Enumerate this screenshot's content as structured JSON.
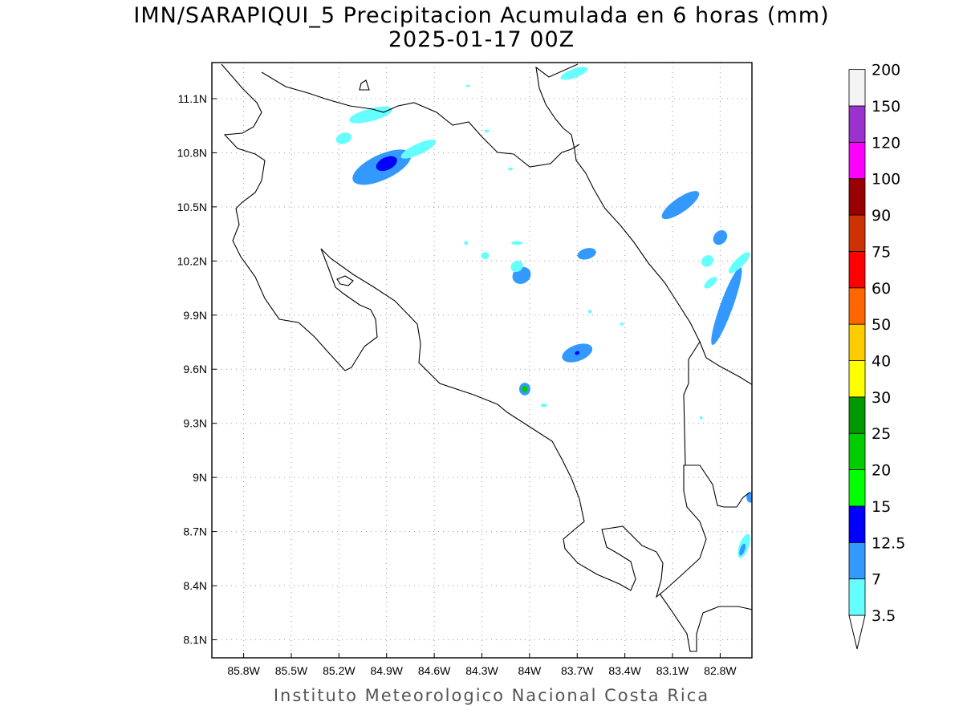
{
  "title_line1": "IMN/SARAPIQUI_5 Precipitacion Acumulada en 6 horas (mm)",
  "title_line2": "2025-01-17 00Z",
  "credit": "Instituto Meteorologico Nacional Costa Rica",
  "map": {
    "lon_min": -86.0,
    "lon_max": -82.6,
    "lat_min": 8.0,
    "lat_max": 11.3,
    "x_ticks": [
      {
        "value": -85.8,
        "label": "85.8W"
      },
      {
        "value": -85.5,
        "label": "85.5W"
      },
      {
        "value": -85.2,
        "label": "85.2W"
      },
      {
        "value": -84.9,
        "label": "84.9W"
      },
      {
        "value": -84.6,
        "label": "84.6W"
      },
      {
        "value": -84.3,
        "label": "84.3W"
      },
      {
        "value": -84.0,
        "label": "84W"
      },
      {
        "value": -83.7,
        "label": "83.7W"
      },
      {
        "value": -83.4,
        "label": "83.4W"
      },
      {
        "value": -83.1,
        "label": "83.1W"
      },
      {
        "value": -82.8,
        "label": "82.8W"
      }
    ],
    "y_ticks": [
      {
        "value": 11.1,
        "label": "11.1N"
      },
      {
        "value": 10.8,
        "label": "10.8N"
      },
      {
        "value": 10.5,
        "label": "10.5N"
      },
      {
        "value": 10.2,
        "label": "10.2N"
      },
      {
        "value": 9.9,
        "label": "9.9N"
      },
      {
        "value": 9.6,
        "label": "9.6N"
      },
      {
        "value": 9.3,
        "label": "9.3N"
      },
      {
        "value": 9.0,
        "label": "9N"
      },
      {
        "value": 8.7,
        "label": "8.7N"
      },
      {
        "value": 8.4,
        "label": "8.4N"
      },
      {
        "value": 8.1,
        "label": "8.1N"
      }
    ]
  },
  "colorbar": [
    {
      "label": "3.5",
      "color": "#66ffff"
    },
    {
      "label": "7",
      "color": "#3399ff"
    },
    {
      "label": "12.5",
      "color": "#0000ff"
    },
    {
      "label": "15",
      "color": "#00ff00"
    },
    {
      "label": "20",
      "color": "#00cc00"
    },
    {
      "label": "25",
      "color": "#009900"
    },
    {
      "label": "30",
      "color": "#ffff00"
    },
    {
      "label": "40",
      "color": "#ffcc00"
    },
    {
      "label": "50",
      "color": "#ff6600"
    },
    {
      "label": "60",
      "color": "#ff0000"
    },
    {
      "label": "75",
      "color": "#cc3300"
    },
    {
      "label": "90",
      "color": "#990000"
    },
    {
      "label": "100",
      "color": "#ff00ff"
    },
    {
      "label": "120",
      "color": "#9933cc"
    },
    {
      "label": "150",
      "color": "#f4f4f4"
    },
    {
      "label": "200",
      "color": "#aaaaaa"
    }
  ],
  "precip_cells": [
    {
      "lon": -84.93,
      "lat": 10.72,
      "rx": 0.2,
      "ry": 0.07,
      "rot": -25,
      "level": 1
    },
    {
      "lon": -84.9,
      "lat": 10.74,
      "rx": 0.07,
      "ry": 0.035,
      "rot": -25,
      "level": 2
    },
    {
      "lon": -84.7,
      "lat": 10.82,
      "rx": 0.12,
      "ry": 0.03,
      "rot": -25,
      "level": 0
    },
    {
      "lon": -85.17,
      "lat": 10.88,
      "rx": 0.05,
      "ry": 0.03,
      "rot": -20,
      "level": 0
    },
    {
      "lon": -85.0,
      "lat": 11.01,
      "rx": 0.14,
      "ry": 0.035,
      "rot": -15,
      "level": 0
    },
    {
      "lon": -83.72,
      "lat": 11.24,
      "rx": 0.09,
      "ry": 0.025,
      "rot": -20,
      "level": 0
    },
    {
      "lon": -83.05,
      "lat": 10.51,
      "rx": 0.14,
      "ry": 0.04,
      "rot": -35,
      "level": 1
    },
    {
      "lon": -82.8,
      "lat": 10.33,
      "rx": 0.05,
      "ry": 0.035,
      "rot": -50,
      "level": 1
    },
    {
      "lon": -82.88,
      "lat": 10.2,
      "rx": 0.04,
      "ry": 0.03,
      "rot": -40,
      "level": 0
    },
    {
      "lon": -82.76,
      "lat": 9.95,
      "rx": 0.26,
      "ry": 0.035,
      "rot": -70,
      "level": 1
    },
    {
      "lon": -82.68,
      "lat": 10.19,
      "rx": 0.09,
      "ry": 0.025,
      "rot": -45,
      "level": 0
    },
    {
      "lon": -82.86,
      "lat": 10.08,
      "rx": 0.05,
      "ry": 0.02,
      "rot": -40,
      "level": 0
    },
    {
      "lon": -84.05,
      "lat": 10.12,
      "rx": 0.06,
      "ry": 0.045,
      "rot": -30,
      "level": 1
    },
    {
      "lon": -84.08,
      "lat": 10.17,
      "rx": 0.04,
      "ry": 0.03,
      "rot": -30,
      "level": 0
    },
    {
      "lon": -84.28,
      "lat": 10.23,
      "rx": 0.025,
      "ry": 0.02,
      "rot": 0,
      "level": 0
    },
    {
      "lon": -84.4,
      "lat": 10.3,
      "rx": 0.012,
      "ry": 0.012,
      "rot": 0,
      "level": 0
    },
    {
      "lon": -84.08,
      "lat": 10.3,
      "rx": 0.035,
      "ry": 0.01,
      "rot": 0,
      "level": 0
    },
    {
      "lon": -83.64,
      "lat": 10.24,
      "rx": 0.06,
      "ry": 0.03,
      "rot": -15,
      "level": 1
    },
    {
      "lon": -83.7,
      "lat": 9.69,
      "rx": 0.1,
      "ry": 0.045,
      "rot": -20,
      "level": 1
    },
    {
      "lon": -83.7,
      "lat": 9.69,
      "rx": 0.015,
      "ry": 0.01,
      "rot": -20,
      "level": 2
    },
    {
      "lon": -84.03,
      "lat": 9.49,
      "rx": 0.035,
      "ry": 0.035,
      "rot": 0,
      "level": 1
    },
    {
      "lon": -84.03,
      "lat": 9.49,
      "rx": 0.018,
      "ry": 0.018,
      "rot": 0,
      "level": 4
    },
    {
      "lon": -83.62,
      "lat": 9.92,
      "rx": 0.012,
      "ry": 0.01,
      "rot": 0,
      "level": 0
    },
    {
      "lon": -83.42,
      "lat": 9.85,
      "rx": 0.012,
      "ry": 0.008,
      "rot": 0,
      "level": 0
    },
    {
      "lon": -83.91,
      "lat": 9.4,
      "rx": 0.02,
      "ry": 0.01,
      "rot": 0,
      "level": 0
    },
    {
      "lon": -84.27,
      "lat": 10.92,
      "rx": 0.015,
      "ry": 0.008,
      "rot": 0,
      "level": 0
    },
    {
      "lon": -84.12,
      "lat": 10.71,
      "rx": 0.015,
      "ry": 0.008,
      "rot": 0,
      "level": 0
    },
    {
      "lon": -84.39,
      "lat": 11.17,
      "rx": 0.015,
      "ry": 0.006,
      "rot": 0,
      "level": 0
    },
    {
      "lon": -82.61,
      "lat": 8.89,
      "rx": 0.025,
      "ry": 0.03,
      "rot": 0,
      "level": 1
    },
    {
      "lon": -82.65,
      "lat": 8.62,
      "rx": 0.03,
      "ry": 0.07,
      "rot": 20,
      "level": 0
    },
    {
      "lon": -82.66,
      "lat": 8.6,
      "rx": 0.015,
      "ry": 0.035,
      "rot": 20,
      "level": 1
    },
    {
      "lon": -82.92,
      "lat": 9.33,
      "rx": 0.01,
      "ry": 0.01,
      "rot": 0,
      "level": 0
    }
  ]
}
